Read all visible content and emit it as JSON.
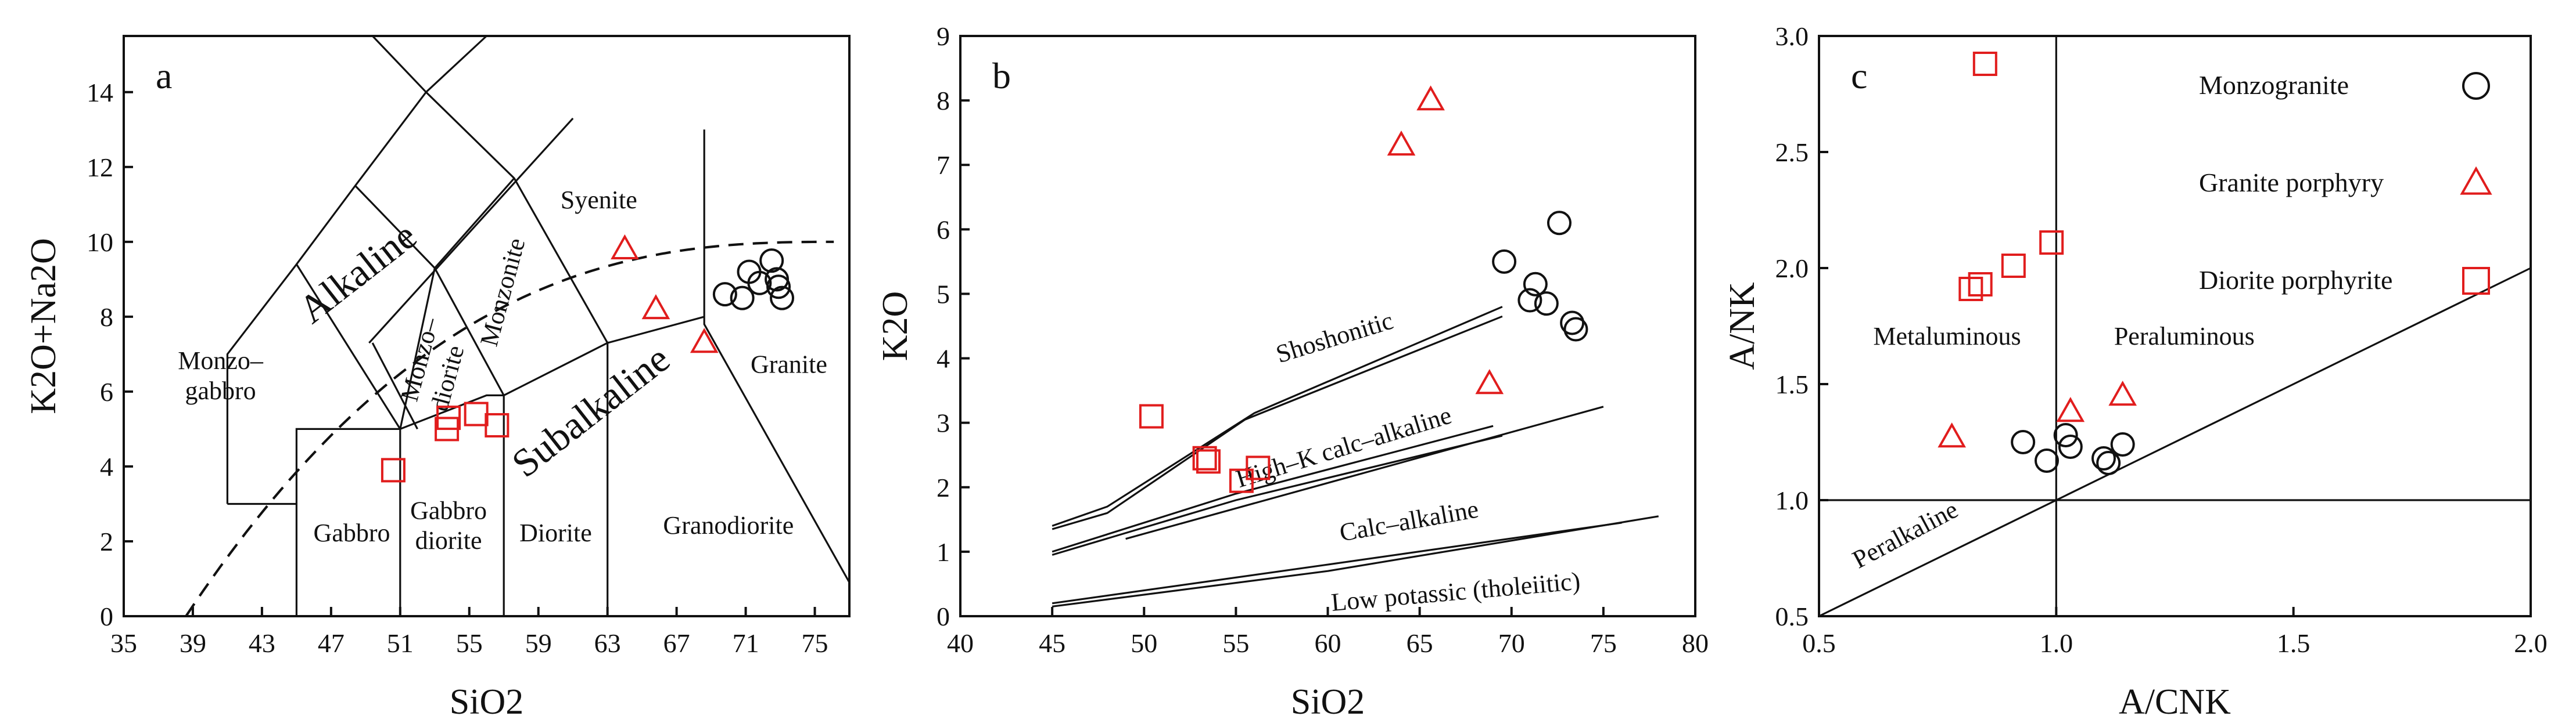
{
  "chart_data": [
    {
      "type": "scatter",
      "panel": "a",
      "xlabel": "SiO2",
      "ylabel": "K2O+Na2O",
      "xlim": [
        35,
        77
      ],
      "ylim": [
        0,
        15.5
      ],
      "xticks": [
        "35",
        "39",
        "43",
        "47",
        "51",
        "55",
        "59",
        "63",
        "67",
        "71",
        "75"
      ],
      "xtick_values": [
        35,
        39,
        43,
        47,
        51,
        55,
        59,
        63,
        67,
        71,
        75
      ],
      "yticks": [
        "0",
        "2",
        "4",
        "6",
        "8",
        "10",
        "12",
        "14"
      ],
      "ytick_values": [
        0,
        2,
        4,
        6,
        8,
        10,
        12,
        14
      ],
      "regions": [
        {
          "label": "Alkaline",
          "x": 49,
          "y": 8.9,
          "size": "big",
          "rotate": -38
        },
        {
          "label": "Subalkaline",
          "x": 62.5,
          "y": 5.2,
          "size": "big",
          "rotate": -38
        },
        {
          "label": "Syenite",
          "x": 62.5,
          "y": 10.9
        },
        {
          "label": "Monzo–",
          "x": 40.6,
          "y": 6.6
        },
        {
          "label": "gabbro",
          "x": 40.6,
          "y": 5.8
        },
        {
          "label": "Monzo–",
          "x": 52.6,
          "y": 6.8,
          "rotate": -75
        },
        {
          "label": "diorite",
          "x": 54.2,
          "y": 6.3,
          "rotate": -75
        },
        {
          "label": "Monzonite",
          "x": 57.4,
          "y": 8.6,
          "rotate": -75
        },
        {
          "label": "Gabbro",
          "x": 48.2,
          "y": 2.0
        },
        {
          "label": "Gabbro",
          "x": 53.8,
          "y": 2.6
        },
        {
          "label": "diorite",
          "x": 53.8,
          "y": 1.8
        },
        {
          "label": "Diorite",
          "x": 60.0,
          "y": 2.0
        },
        {
          "label": "Granodiorite",
          "x": 70.0,
          "y": 2.2
        },
        {
          "label": "Granite",
          "x": 73.5,
          "y": 6.5
        }
      ],
      "series": [
        {
          "name": "Monzogranite",
          "marker": "circle",
          "color": "#111111",
          "points": [
            [
              69.8,
              8.6
            ],
            [
              70.8,
              8.5
            ],
            [
              71.2,
              9.2
            ],
            [
              71.8,
              8.9
            ],
            [
              72.5,
              9.5
            ],
            [
              72.9,
              8.8
            ],
            [
              73.1,
              8.5
            ],
            [
              72.8,
              9.0
            ]
          ]
        },
        {
          "name": "Granite porphyry",
          "marker": "triangle",
          "color": "#e11d1d",
          "points": [
            [
              64.0,
              9.8
            ],
            [
              65.8,
              8.2
            ],
            [
              68.6,
              7.3
            ]
          ]
        },
        {
          "name": "Diorite porphyrite",
          "marker": "square",
          "color": "#e11d1d",
          "points": [
            [
              50.6,
              3.9
            ],
            [
              53.7,
              5.0
            ],
            [
              53.8,
              5.3
            ],
            [
              55.4,
              5.4
            ],
            [
              56.6,
              5.1
            ]
          ]
        }
      ]
    },
    {
      "type": "scatter",
      "panel": "b",
      "xlabel": "SiO2",
      "ylabel": "K2O",
      "xlim": [
        40,
        80
      ],
      "ylim": [
        0,
        9
      ],
      "xticks": [
        "40",
        "45",
        "50",
        "55",
        "60",
        "65",
        "70",
        "75",
        "80"
      ],
      "xtick_values": [
        40,
        45,
        50,
        55,
        60,
        65,
        70,
        75,
        80
      ],
      "yticks": [
        "0",
        "1",
        "2",
        "3",
        "4",
        "5",
        "6",
        "7",
        "8",
        "9"
      ],
      "ytick_values": [
        0,
        1,
        2,
        3,
        4,
        5,
        6,
        7,
        8,
        9
      ],
      "regions": [
        {
          "label": "Shoshonitic",
          "x": 60.5,
          "y": 4.2,
          "rotate": -17
        },
        {
          "label": "High–K calc–alkaline",
          "x": 61.0,
          "y": 2.5,
          "rotate": -17
        },
        {
          "label": "Calc–alkaline",
          "x": 64.5,
          "y": 1.35,
          "rotate": -10
        },
        {
          "label": "Low potassic (tholeiitic)",
          "x": 67.0,
          "y": 0.25,
          "rotate": -5
        }
      ],
      "series": [
        {
          "name": "Monzogranite",
          "marker": "circle",
          "color": "#111111",
          "points": [
            [
              69.6,
              5.5
            ],
            [
              71.0,
              4.9
            ],
            [
              71.3,
              5.15
            ],
            [
              71.9,
              4.85
            ],
            [
              72.6,
              6.1
            ],
            [
              73.3,
              4.55
            ],
            [
              73.5,
              4.45
            ]
          ]
        },
        {
          "name": "Granite porphyry",
          "marker": "triangle",
          "color": "#e11d1d",
          "points": [
            [
              64.0,
              7.3
            ],
            [
              65.6,
              8.0
            ],
            [
              68.8,
              3.6
            ]
          ]
        },
        {
          "name": "Diorite porphyrite",
          "marker": "square",
          "color": "#e11d1d",
          "points": [
            [
              50.4,
              3.1
            ],
            [
              53.3,
              2.45
            ],
            [
              53.5,
              2.4
            ],
            [
              55.3,
              2.1
            ],
            [
              56.2,
              2.3
            ]
          ]
        }
      ]
    },
    {
      "type": "scatter",
      "panel": "c",
      "xlabel": "A/CNK",
      "ylabel": "A/NK",
      "xlim": [
        0.5,
        2.0
      ],
      "ylim": [
        0.5,
        3.0
      ],
      "xticks": [
        "0.5",
        "1.0",
        "1.5",
        "2.0"
      ],
      "xtick_values": [
        0.5,
        1.0,
        1.5,
        2.0
      ],
      "yticks": [
        "0.5",
        "1.0",
        "1.5",
        "2.0",
        "2.5",
        "3.0"
      ],
      "ytick_values": [
        0.5,
        1.0,
        1.5,
        2.0,
        2.5,
        3.0
      ],
      "regions": [
        {
          "label": "Metaluminous",
          "x": 0.77,
          "y": 1.67
        },
        {
          "label": "Peraluminous",
          "x": 1.27,
          "y": 1.67
        },
        {
          "label": "Peralkaline",
          "x": 0.69,
          "y": 0.82,
          "rotate": -28
        }
      ],
      "series": [
        {
          "name": "Monzogranite",
          "marker": "circle",
          "color": "#111111",
          "points": [
            [
              0.93,
              1.25
            ],
            [
              0.98,
              1.17
            ],
            [
              1.02,
              1.28
            ],
            [
              1.03,
              1.23
            ],
            [
              1.1,
              1.18
            ],
            [
              1.11,
              1.16
            ],
            [
              1.14,
              1.24
            ]
          ]
        },
        {
          "name": "Granite porphyry",
          "marker": "triangle",
          "color": "#e11d1d",
          "points": [
            [
              0.78,
              1.27
            ],
            [
              1.03,
              1.38
            ],
            [
              1.14,
              1.45
            ]
          ]
        },
        {
          "name": "Diorite porphyrite",
          "marker": "square",
          "color": "#e11d1d",
          "points": [
            [
              0.85,
              2.88
            ],
            [
              0.82,
              1.91
            ],
            [
              0.84,
              1.93
            ],
            [
              0.91,
              2.01
            ],
            [
              0.99,
              2.11
            ]
          ]
        }
      ],
      "legend": {
        "position": "top-right",
        "entries": [
          {
            "label": "Monzogranite",
            "marker": "circle",
            "color": "#111111"
          },
          {
            "label": "Granite porphyry",
            "marker": "triangle",
            "color": "#e11d1d"
          },
          {
            "label": "Diorite porphyrite",
            "marker": "square",
            "color": "#e11d1d"
          }
        ]
      }
    }
  ],
  "panel_letters": [
    "a",
    "b",
    "c"
  ]
}
